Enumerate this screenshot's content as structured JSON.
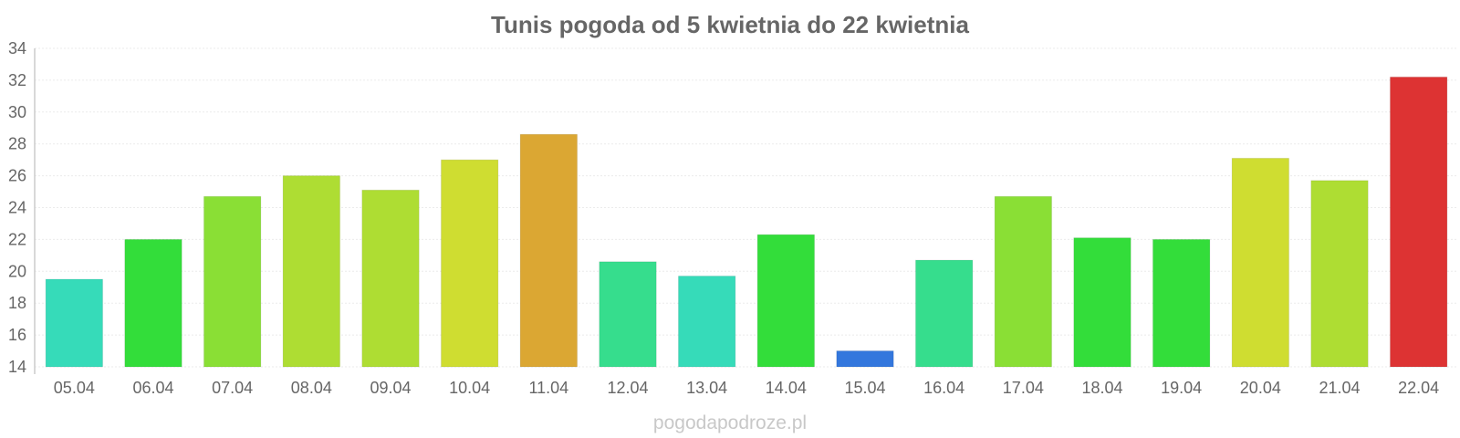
{
  "chart_data": {
    "type": "bar",
    "title": "Tunis pogoda od 5 kwietnia do 22 kwietnia",
    "xlabel": "",
    "ylabel": "",
    "ylim": [
      14,
      34
    ],
    "y_ticks": [
      "14",
      "16",
      "18",
      "20",
      "22",
      "24",
      "26",
      "28",
      "30",
      "32",
      "34"
    ],
    "grid": true,
    "legend": "none",
    "categories": [
      "05.04",
      "06.04",
      "07.04",
      "08.04",
      "09.04",
      "10.04",
      "11.04",
      "12.04",
      "13.04",
      "14.04",
      "15.04",
      "16.04",
      "17.04",
      "18.04",
      "19.04",
      "20.04",
      "21.04",
      "22.04"
    ],
    "values": [
      19.5,
      22.0,
      24.7,
      26.0,
      25.1,
      27.0,
      28.6,
      20.6,
      19.7,
      22.3,
      15.0,
      20.7,
      24.7,
      22.1,
      22.0,
      27.1,
      25.7,
      32.2
    ],
    "colors": [
      "#36dbb9",
      "#33dd3a",
      "#8adf35",
      "#aedd33",
      "#aedd33",
      "#cfdd31",
      "#dba733",
      "#36dd8d",
      "#36dbb9",
      "#33dd3a",
      "#3377dd",
      "#36dd8d",
      "#8adf35",
      "#33dd3a",
      "#33dd3a",
      "#cfdd31",
      "#aedd33",
      "#dd3333"
    ]
  },
  "watermark": "pogodapodroze.pl"
}
